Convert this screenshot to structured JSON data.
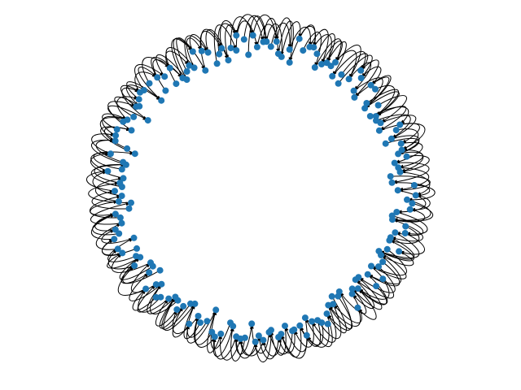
{
  "graph": {
    "kind": "directed graph with self-loops",
    "layout": "ring",
    "node_count": 200,
    "node_color": "#1f77b4",
    "edge_color": "#000000",
    "background": "#ffffff"
  }
}
